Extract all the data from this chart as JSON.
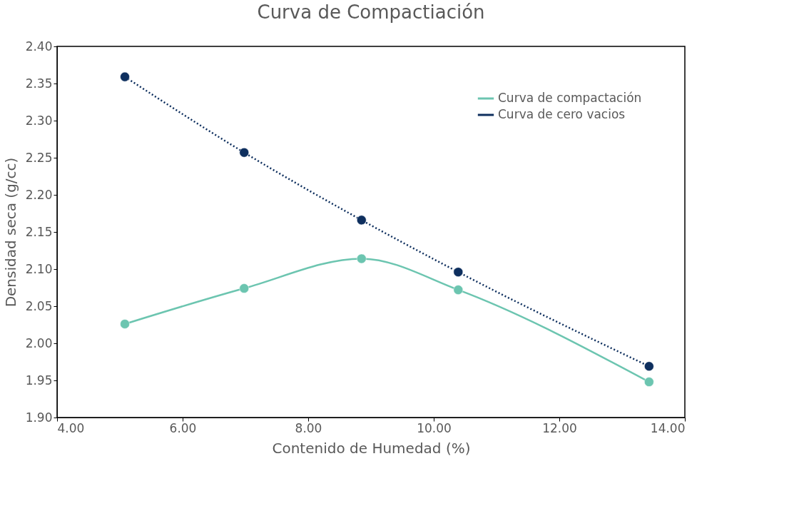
{
  "chart_data": {
    "type": "line",
    "title": "Curva de Compactiación",
    "xlabel": "Contenido de Humedad (%)",
    "ylabel": "Densidad seca (g/cc)",
    "xlim": [
      4,
      14
    ],
    "xticks": [
      {
        "value": 4,
        "label": "4.00"
      },
      {
        "value": 6,
        "label": "6.00"
      },
      {
        "value": 8,
        "label": "8.00"
      },
      {
        "value": 10,
        "label": "10.00"
      },
      {
        "value": 12,
        "label": "12.00"
      },
      {
        "value": 14,
        "label": "14.00"
      }
    ],
    "ylim": [
      1.9,
      2.4
    ],
    "yticks": [
      {
        "value": 1.9,
        "label": "1.90"
      },
      {
        "value": 1.95,
        "label": "1.95"
      },
      {
        "value": 2.0,
        "label": "2.00"
      },
      {
        "value": 2.05,
        "label": "2.05"
      },
      {
        "value": 2.1,
        "label": "2.10"
      },
      {
        "value": 2.15,
        "label": "2.15"
      },
      {
        "value": 2.2,
        "label": "2.20"
      },
      {
        "value": 2.25,
        "label": "2.25"
      },
      {
        "value": 2.3,
        "label": "2.30"
      },
      {
        "value": 2.35,
        "label": "2.35"
      },
      {
        "value": 2.4,
        "label": "2.40"
      }
    ],
    "grid": false,
    "legend": "top right",
    "marker": "circle",
    "series": [
      {
        "name": "Curva de compactación",
        "color": "#6cc5b0",
        "line_style": "solid",
        "x": [
          5.08,
          6.98,
          8.85,
          10.39,
          13.43
        ],
        "values": [
          2.026,
          2.074,
          2.114,
          2.072,
          1.948
        ]
      },
      {
        "name": "Curva de cero vacios",
        "color": "#0e2f5e",
        "line_style": "dotted",
        "x": [
          5.08,
          6.98,
          8.85,
          10.39,
          13.43
        ],
        "values": [
          2.359,
          2.257,
          2.166,
          2.096,
          1.969
        ]
      }
    ]
  }
}
